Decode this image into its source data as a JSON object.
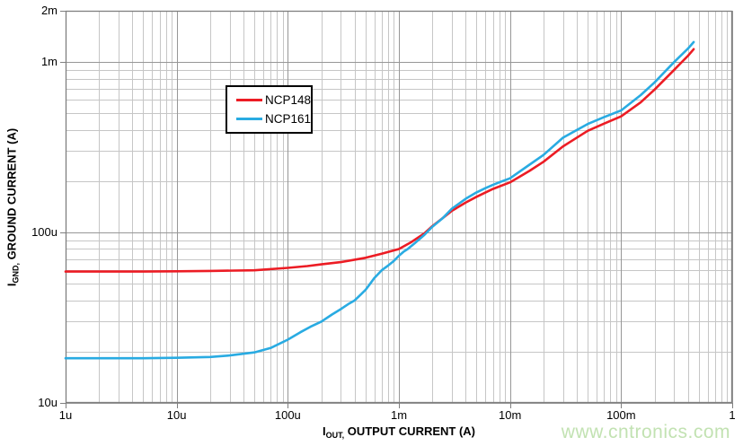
{
  "chart_data": {
    "type": "line",
    "title": "",
    "x_axis": {
      "label": {
        "base": "I",
        "sub": "OUT,",
        "rest": " OUTPUT CURRENT (A)"
      },
      "scale": "log",
      "min": 1e-06,
      "max": 1,
      "ticks": [
        {
          "value": 1e-06,
          "label": "1u"
        },
        {
          "value": 1e-05,
          "label": "10u"
        },
        {
          "value": 0.0001,
          "label": "100u"
        },
        {
          "value": 0.001,
          "label": "1m"
        },
        {
          "value": 0.01,
          "label": "10m"
        },
        {
          "value": 0.1,
          "label": "100m"
        },
        {
          "value": 1,
          "label": "1"
        }
      ]
    },
    "y_axis": {
      "label": {
        "base": "I",
        "sub": "GND,",
        "rest": " GROUND CURRENT (A)"
      },
      "scale": "log",
      "min": 1e-05,
      "max": 0.002,
      "ticks": [
        {
          "value": 1e-05,
          "label": "10u"
        },
        {
          "value": 0.0001,
          "label": "100u"
        },
        {
          "value": 0.001,
          "label": "1m"
        },
        {
          "value": 0.002,
          "label": "2m"
        }
      ]
    },
    "grid": {
      "minor_color": "#c6c6c6",
      "major_color": "#979797",
      "border_color": "#7f7f7f"
    },
    "legend": {
      "position": "inside-top-left"
    },
    "series": [
      {
        "name": "NCP148",
        "color": "#ec1c24",
        "points": [
          [
            1e-06,
            5.9e-05
          ],
          [
            2e-06,
            5.9e-05
          ],
          [
            5e-06,
            5.9e-05
          ],
          [
            1e-05,
            5.92e-05
          ],
          [
            2e-05,
            5.95e-05
          ],
          [
            5e-05,
            6e-05
          ],
          [
            0.0001,
            6.2e-05
          ],
          [
            0.00015,
            6.35e-05
          ],
          [
            0.0002,
            6.5e-05
          ],
          [
            0.0003,
            6.7e-05
          ],
          [
            0.0005,
            7.1e-05
          ],
          [
            0.0007,
            7.5e-05
          ],
          [
            0.001,
            8e-05
          ],
          [
            0.0013,
            8.8e-05
          ],
          [
            0.0017,
            9.9e-05
          ],
          [
            0.002,
            0.000109
          ],
          [
            0.0025,
            0.000122
          ],
          [
            0.003,
            0.000134
          ],
          [
            0.004,
            0.00015
          ],
          [
            0.005,
            0.000162
          ],
          [
            0.007,
            0.00018
          ],
          [
            0.01,
            0.000197
          ],
          [
            0.015,
            0.00023
          ],
          [
            0.02,
            0.00026
          ],
          [
            0.03,
            0.00032
          ],
          [
            0.05,
            0.000395
          ],
          [
            0.07,
            0.000435
          ],
          [
            0.1,
            0.00048
          ],
          [
            0.15,
            0.00058
          ],
          [
            0.2,
            0.00069
          ],
          [
            0.3,
            0.0009
          ],
          [
            0.4,
            0.00109
          ],
          [
            0.45,
            0.00119
          ]
        ]
      },
      {
        "name": "NCP161",
        "color": "#29abe2",
        "points": [
          [
            1e-06,
            1.83e-05
          ],
          [
            2e-06,
            1.83e-05
          ],
          [
            5e-06,
            1.83e-05
          ],
          [
            1e-05,
            1.84e-05
          ],
          [
            2e-05,
            1.86e-05
          ],
          [
            3e-05,
            1.9e-05
          ],
          [
            5e-05,
            1.98e-05
          ],
          [
            7e-05,
            2.1e-05
          ],
          [
            0.0001,
            2.35e-05
          ],
          [
            0.00013,
            2.6e-05
          ],
          [
            0.00016,
            2.8e-05
          ],
          [
            0.0002,
            3e-05
          ],
          [
            0.00025,
            3.3e-05
          ],
          [
            0.0003,
            3.55e-05
          ],
          [
            0.00035,
            3.8e-05
          ],
          [
            0.0004,
            4e-05
          ],
          [
            0.00045,
            4.3e-05
          ],
          [
            0.0005,
            4.6e-05
          ],
          [
            0.00055,
            5e-05
          ],
          [
            0.0006,
            5.4e-05
          ],
          [
            0.00065,
            5.7e-05
          ],
          [
            0.0007,
            6e-05
          ],
          [
            0.0008,
            6.4e-05
          ],
          [
            0.0009,
            6.8e-05
          ],
          [
            0.001,
            7.3e-05
          ],
          [
            0.0011,
            7.7e-05
          ],
          [
            0.0012,
            8e-05
          ],
          [
            0.0014,
            8.7e-05
          ],
          [
            0.0017,
            9.7e-05
          ],
          [
            0.002,
            0.000108
          ],
          [
            0.0025,
            0.000122
          ],
          [
            0.003,
            0.000138
          ],
          [
            0.004,
            0.000158
          ],
          [
            0.005,
            0.000172
          ],
          [
            0.006,
            0.000182
          ],
          [
            0.007,
            0.00019
          ],
          [
            0.008,
            0.000197
          ],
          [
            0.01,
            0.000208
          ],
          [
            0.015,
            0.00025
          ],
          [
            0.02,
            0.000285
          ],
          [
            0.03,
            0.00036
          ],
          [
            0.05,
            0.000433
          ],
          [
            0.07,
            0.000475
          ],
          [
            0.1,
            0.00052
          ],
          [
            0.15,
            0.00064
          ],
          [
            0.2,
            0.00076
          ],
          [
            0.3,
            0.001
          ],
          [
            0.4,
            0.0012
          ],
          [
            0.45,
            0.00131
          ]
        ]
      }
    ]
  },
  "watermark": {
    "text": "www.cntronics.com"
  }
}
